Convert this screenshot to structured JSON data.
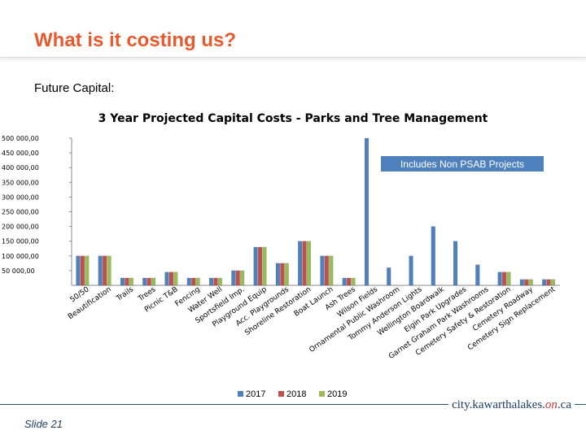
{
  "slide": {
    "title": "What is it costing us?",
    "subtitle": "Future Capital:",
    "slide_number": "Slide 21",
    "brand_prefix": "city.",
    "brand_main": "kawarthalakes.",
    "brand_on": "on",
    "brand_suffix": ".ca"
  },
  "colors": {
    "s2017": "#4f81bd",
    "s2018": "#c0504d",
    "s2019": "#9bbb59",
    "note_bg": "#4f81bd",
    "title": "#e8592d"
  },
  "chart_data": {
    "type": "bar",
    "title": "3 Year Projected Capital Costs - Parks and Tree Management",
    "annotation": "Includes Non PSAB Projects",
    "ylim": [
      0,
      500000
    ],
    "yticks": [
      "500 000,00",
      "450 000,00",
      "400 000,00",
      "350 000,00",
      "300 000,00",
      "250 000,00",
      "200 000,00",
      "150 000,00",
      "100 000,00",
      "50 000,00"
    ],
    "ytick_values": [
      500000,
      450000,
      400000,
      350000,
      300000,
      250000,
      200000,
      150000,
      100000,
      50000
    ],
    "legend_position": "bottom",
    "categories": [
      "50/50",
      "Beautification",
      "Trails",
      "Trees",
      "Picnic T&B",
      "Fencing",
      "Water Well",
      "Sportsfield Imp.",
      "Playground Equip",
      "Acc. Playgrounds",
      "Shoreline Restoration",
      "Boat Launch",
      "Ash Trees",
      "Wilson Fields",
      "Ornamental Public Washroom",
      "Tommy Anderson Lights",
      "Wellington Boardwalk",
      "Elgin Park Upgrades",
      "Garnet Graham Park Washrooms",
      "Cemetery Safety & Restoration",
      "Cemetery Roadway",
      "Cemetery Sign Replacement"
    ],
    "series": [
      {
        "name": "2017",
        "values": [
          100000,
          100000,
          25000,
          25000,
          45000,
          25000,
          25000,
          50000,
          130000,
          75000,
          150000,
          100000,
          25000,
          500000,
          60000,
          100000,
          200000,
          150000,
          70000,
          45000,
          20000,
          20000
        ]
      },
      {
        "name": "2018",
        "values": [
          100000,
          100000,
          25000,
          25000,
          45000,
          25000,
          25000,
          50000,
          130000,
          75000,
          150000,
          100000,
          25000,
          0,
          0,
          0,
          0,
          0,
          0,
          45000,
          20000,
          20000
        ]
      },
      {
        "name": "2019",
        "values": [
          100000,
          100000,
          25000,
          25000,
          45000,
          25000,
          25000,
          50000,
          130000,
          75000,
          150000,
          100000,
          25000,
          0,
          0,
          0,
          0,
          0,
          0,
          45000,
          20000,
          20000
        ]
      }
    ]
  }
}
